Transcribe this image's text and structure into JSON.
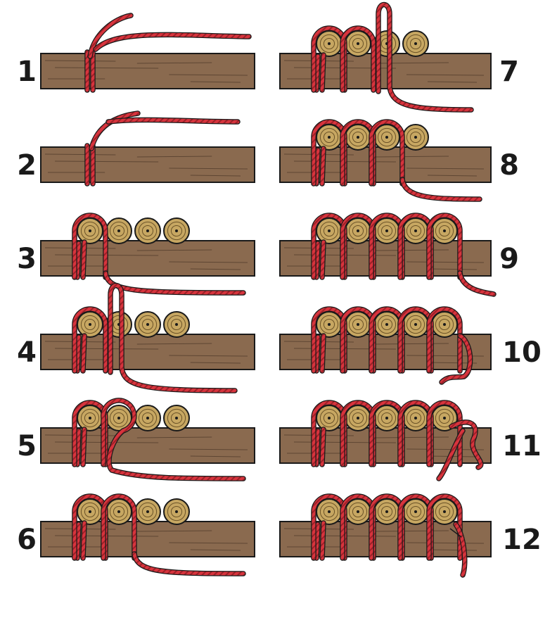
{
  "figure": {
    "steps": [
      {
        "label": "1",
        "logs": 0,
        "phase": "clove-start"
      },
      {
        "label": "2",
        "logs": 0,
        "phase": "clove-tied"
      },
      {
        "label": "3",
        "logs": 4,
        "phase": "first-wrap"
      },
      {
        "label": "4",
        "logs": 4,
        "phase": "loop-up"
      },
      {
        "label": "5",
        "logs": 4,
        "phase": "loop-over"
      },
      {
        "label": "6",
        "logs": 4,
        "phase": "second-wrap"
      },
      {
        "label": "7",
        "logs": 4,
        "phase": "third-loop"
      },
      {
        "label": "8",
        "logs": 4,
        "phase": "third-wrap"
      },
      {
        "label": "9",
        "logs": 5,
        "phase": "all-wrapped"
      },
      {
        "label": "10",
        "logs": 5,
        "phase": "finish-start"
      },
      {
        "label": "11",
        "logs": 5,
        "phase": "finish-knot"
      },
      {
        "label": "12",
        "logs": 5,
        "phase": "finished"
      }
    ],
    "colors": {
      "rope": "#d7343d",
      "rope_dark": "#8f1d22",
      "rope_light": "#f07a80",
      "timber": "#8a6a4f",
      "timber_line": "#5e4633",
      "log": "#c7a762",
      "log_ring": "#6b5328",
      "outline": "#1a1a1a"
    }
  }
}
